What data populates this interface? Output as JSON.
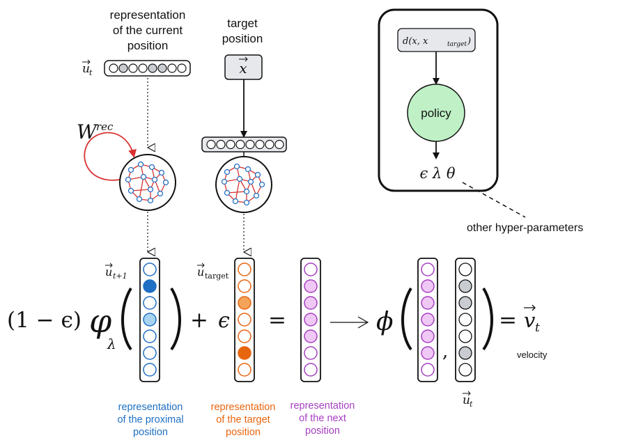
{
  "labels": {
    "current_position": [
      "representation",
      "of the current",
      "position"
    ],
    "target_position": [
      "target",
      "position"
    ],
    "u_t_top": "u",
    "u_t_top_sub": "t",
    "x_box": "x",
    "w_rec_base": "W",
    "w_rec_sup": "rec",
    "dist_box": "d(x, x",
    "dist_box_sub": "target",
    "dist_box_close": ")",
    "policy": "policy",
    "hyper_symbols": "ϵ   λ   θ",
    "other_hyper": "other hyper-parameters",
    "u_t1": "u",
    "u_t1_sub": "t+1",
    "u_target": "u",
    "u_target_sub": "target",
    "one_minus_eps": "(1 − ϵ)",
    "varphi": "φ",
    "lambda_sub": "λ",
    "plus": "+",
    "eps": "ϵ",
    "equals": "=",
    "phi": "ϕ",
    "comma": ",",
    "eq_v": "=",
    "v_t": "v",
    "v_t_sub": "t",
    "velocity": "velocity",
    "u_t_bottom": "u",
    "u_t_bottom_sub": "t",
    "proximal": [
      "representation",
      "of the proximal",
      "position"
    ],
    "target_rep": [
      "representation",
      "of the target",
      "position"
    ],
    "next_rep": [
      "representation",
      "of the next",
      "position"
    ]
  },
  "colors": {
    "blue": "#1f6fc4",
    "blue_fill": "#1f6fc4",
    "blue_light": "#a8d4f2",
    "orange": "#e8650f",
    "orange_light": "#f4a35a",
    "purple": "#a63fc2",
    "purple_fill": "#f0c8f5",
    "gray_fill": "#c9cdd2",
    "red": "#d93030",
    "green": "#bff0c6"
  }
}
